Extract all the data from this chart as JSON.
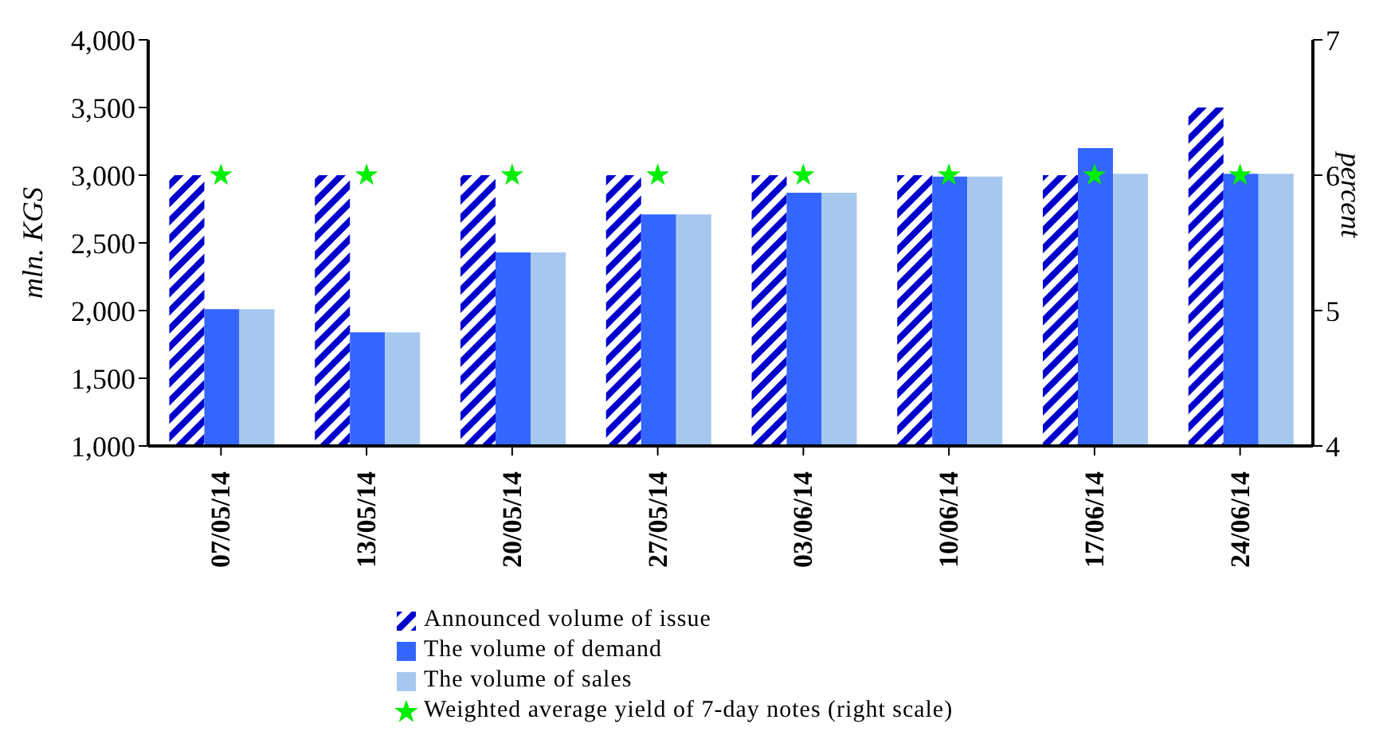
{
  "chart_data": {
    "type": "bar",
    "ylabel": "mln. KGS",
    "y2label": "percent",
    "categories": [
      "07/05/14",
      "13/05/14",
      "20/05/14",
      "27/05/14",
      "03/06/14",
      "10/06/14",
      "17/06/14",
      "24/06/14"
    ],
    "series": [
      {
        "name": "Announced volume of issue",
        "color": "#0000cc",
        "values": [
          3000,
          3000,
          3000,
          3000,
          3000,
          3000,
          3000,
          3500
        ]
      },
      {
        "name": "The volume of demand",
        "color": "#3366ff",
        "values": [
          2010,
          1840,
          2430,
          2710,
          2870,
          2990,
          3200,
          3010
        ]
      },
      {
        "name": "The volume of sales",
        "color": "#a6c8ee",
        "values": [
          2010,
          1840,
          2430,
          2710,
          2870,
          2990,
          3010,
          3010
        ]
      },
      {
        "name": "Weighted average yield of 7-day notes (right scale)",
        "type": "scatter",
        "axis": "y2",
        "color": "#00ee00",
        "marker": "star",
        "values": [
          6.0,
          6.0,
          6.0,
          6.0,
          6.0,
          6.0,
          6.0,
          6.0
        ]
      }
    ],
    "ylim": [
      1000,
      4000
    ],
    "yticks": [
      {
        "value": 1000,
        "label": "1,000"
      },
      {
        "value": 1500,
        "label": "1,500"
      },
      {
        "value": 2000,
        "label": "2,000"
      },
      {
        "value": 2500,
        "label": "2,500"
      },
      {
        "value": 3000,
        "label": "3,000"
      },
      {
        "value": 3500,
        "label": "3,500"
      },
      {
        "value": 4000,
        "label": "4,000"
      }
    ],
    "y2lim": [
      4,
      7
    ],
    "y2ticks": [
      4,
      5,
      6,
      7
    ],
    "grid": false,
    "legend": "bottom"
  }
}
